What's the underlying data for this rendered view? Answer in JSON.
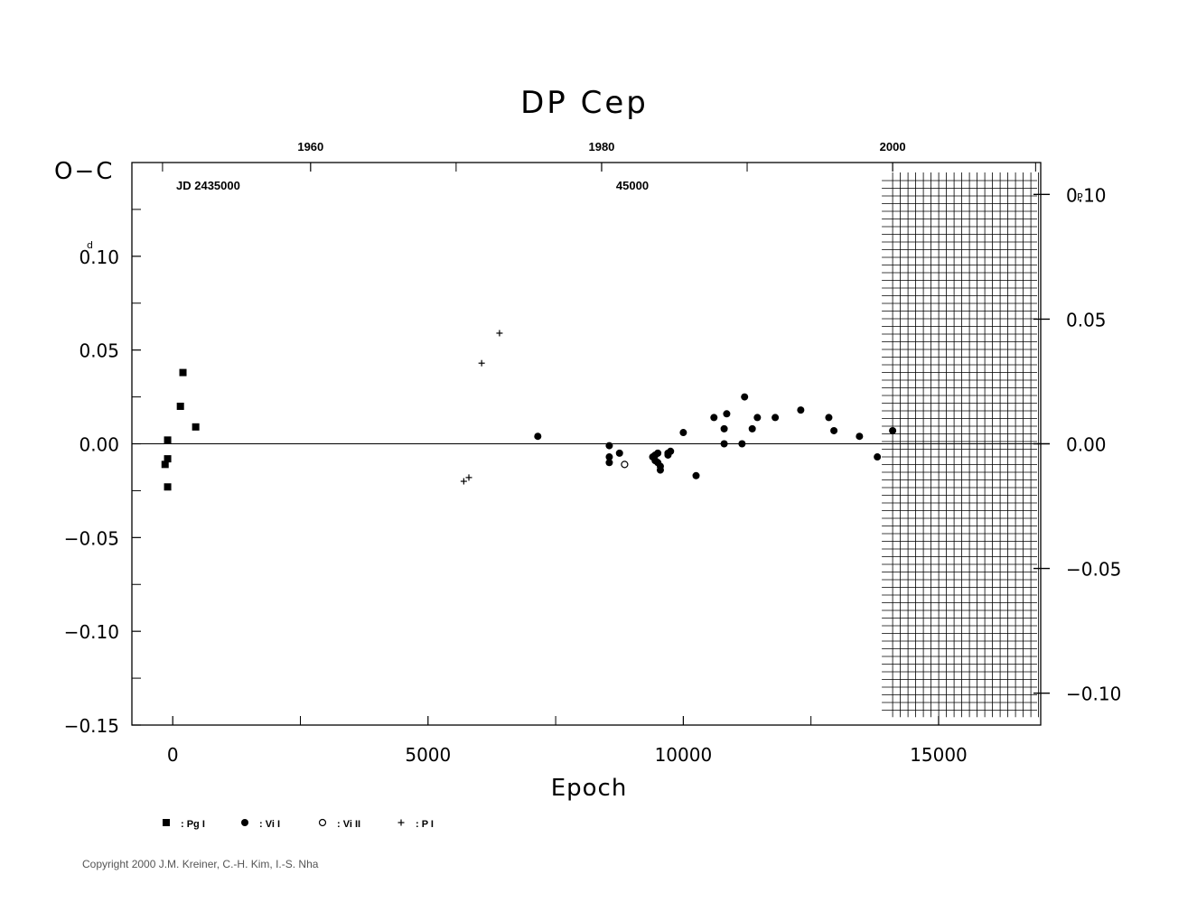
{
  "chart_data": {
    "type": "scatter",
    "title": "DP Cep",
    "ylabel": "O−C",
    "ylabel_unit_left": "d",
    "ylabel_unit_right": "P",
    "xlabel": "Epoch",
    "jd_label": "JD 2435000",
    "jd_mid_label": "45000",
    "xlim": [
      -800,
      17000
    ],
    "ylim": [
      -0.15,
      0.15
    ],
    "right_ylim": [
      -0.1128,
      0.1128
    ],
    "x_ticks": [
      0,
      5000,
      10000,
      15000
    ],
    "x_minor_ticks": [
      2500,
      7500,
      12500
    ],
    "y_ticks": [
      -0.15,
      -0.1,
      -0.05,
      0.0,
      0.05,
      0.1
    ],
    "y_tick_labels": [
      "−0.15",
      "−0.10",
      "−0.05",
      "0.00",
      "0.05",
      "0.10"
    ],
    "y_minor_ticks": [
      -0.125,
      -0.075,
      -0.025,
      0.025,
      0.075,
      0.125
    ],
    "right_y_ticks": [
      -0.1,
      -0.05,
      0.0,
      0.05,
      0.1
    ],
    "right_y_tick_labels": [
      "−0.10",
      "−0.05",
      "0.00",
      "0.05",
      "0.10"
    ],
    "top_year_ticks": [
      {
        "year": 1960,
        "epoch": 2700,
        "label": "1960"
      },
      {
        "year": 1980,
        "epoch": 8400,
        "label": "1980"
      },
      {
        "year": 2000,
        "epoch": 14100,
        "label": "2000"
      }
    ],
    "top_minor_ticks": [
      -200,
      5550,
      11250,
      16900
    ],
    "future_shading_from_epoch": 14100,
    "zero_line": true,
    "series": [
      {
        "name": "Pg I",
        "marker": "square",
        "points": [
          [
            -150,
            -0.011
          ],
          [
            -100,
            -0.023
          ],
          [
            -100,
            0.002
          ],
          [
            -100,
            -0.008
          ],
          [
            150,
            0.02
          ],
          [
            200,
            0.038
          ],
          [
            450,
            0.009
          ]
        ]
      },
      {
        "name": "Vi I",
        "marker": "dot",
        "points": [
          [
            7150,
            0.004
          ],
          [
            8550,
            -0.001
          ],
          [
            8550,
            -0.007
          ],
          [
            8550,
            -0.01
          ],
          [
            8750,
            -0.005
          ],
          [
            9400,
            -0.007
          ],
          [
            9450,
            -0.006
          ],
          [
            9450,
            -0.009
          ],
          [
            9500,
            -0.005
          ],
          [
            9500,
            -0.01
          ],
          [
            9550,
            -0.012
          ],
          [
            9550,
            -0.014
          ],
          [
            9700,
            -0.005
          ],
          [
            9700,
            -0.006
          ],
          [
            9750,
            -0.004
          ],
          [
            10000,
            0.006
          ],
          [
            10250,
            -0.017
          ],
          [
            10600,
            0.014
          ],
          [
            10800,
            0.008
          ],
          [
            10800,
            0.0
          ],
          [
            10850,
            0.016
          ],
          [
            11150,
            0.0
          ],
          [
            11200,
            0.025
          ],
          [
            11350,
            0.008
          ],
          [
            11450,
            0.014
          ],
          [
            11800,
            0.014
          ],
          [
            12300,
            0.018
          ],
          [
            12850,
            0.014
          ],
          [
            12950,
            0.007
          ],
          [
            13450,
            0.004
          ],
          [
            13800,
            -0.007
          ],
          [
            14100,
            0.007
          ]
        ]
      },
      {
        "name": "Vi II",
        "marker": "circle",
        "points": [
          [
            8850,
            -0.011
          ]
        ]
      },
      {
        "name": "P I",
        "marker": "plus",
        "points": [
          [
            5700,
            -0.02
          ],
          [
            5800,
            -0.018
          ],
          [
            6050,
            0.043
          ],
          [
            6400,
            0.059
          ]
        ]
      }
    ],
    "legend": [
      {
        "marker": "square",
        "label": ": Pg I"
      },
      {
        "marker": "dot",
        "label": ": Vi I"
      },
      {
        "marker": "circle",
        "label": ": Vi II"
      },
      {
        "marker": "plus",
        "label": ": P I"
      }
    ]
  },
  "copyright": "Copyright 2000 J.M. Kreiner, C.-H. Kim, I.-S. Nha"
}
